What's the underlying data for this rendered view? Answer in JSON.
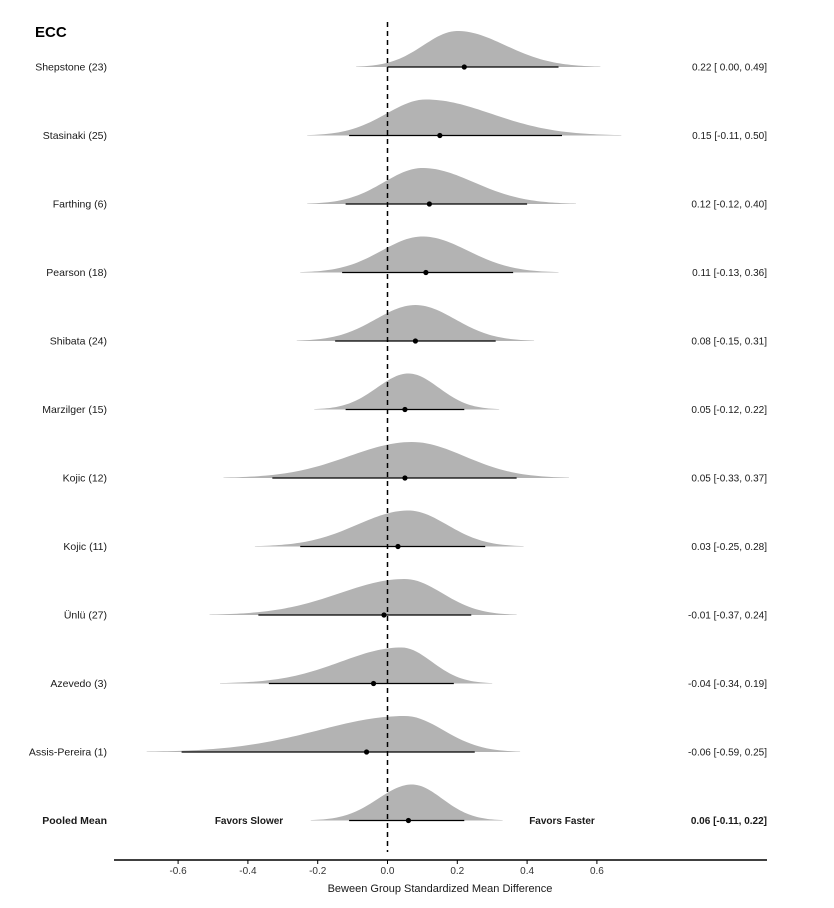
{
  "chart_data": {
    "type": "forest-density",
    "title": "ECC",
    "xlabel": "Beween Group Standardized Mean Difference",
    "xlim": [
      -0.76,
      1.08
    ],
    "xticks": [
      -0.6,
      -0.4,
      -0.2,
      0,
      0.2,
      0.4,
      0.6
    ],
    "xtick_labels": [
      "-0.6",
      "-0.4",
      "-0.2",
      "0.0",
      "0.2",
      "0.4",
      "0.6"
    ],
    "reference_line": 0,
    "favors_left": "Favors Slower",
    "favors_right": "Favors Faster",
    "fill_color": "#b3b3b3",
    "studies": [
      {
        "label": "Shepstone (23)",
        "mean": 0.22,
        "lower": 0.0,
        "upper": 0.49,
        "ci_text": "0.22 [ 0.00, 0.49]",
        "density_mode": 0.2,
        "density_min": -0.09,
        "density_max": 0.61,
        "pooled": false
      },
      {
        "label": "Stasinaki (25)",
        "mean": 0.15,
        "lower": -0.11,
        "upper": 0.5,
        "ci_text": "0.15 [-0.11, 0.50]",
        "density_mode": 0.11,
        "density_min": -0.23,
        "density_max": 0.67,
        "pooled": false
      },
      {
        "label": "Farthing (6)",
        "mean": 0.12,
        "lower": -0.12,
        "upper": 0.4,
        "ci_text": "0.12 [-0.12, 0.40]",
        "density_mode": 0.1,
        "density_min": -0.23,
        "density_max": 0.54,
        "pooled": false
      },
      {
        "label": "Pearson (18)",
        "mean": 0.11,
        "lower": -0.13,
        "upper": 0.36,
        "ci_text": "0.11 [-0.13, 0.36]",
        "density_mode": 0.1,
        "density_min": -0.25,
        "density_max": 0.49,
        "pooled": false
      },
      {
        "label": "Shibata (24)",
        "mean": 0.08,
        "lower": -0.15,
        "upper": 0.31,
        "ci_text": "0.08 [-0.15, 0.31]",
        "density_mode": 0.08,
        "density_min": -0.26,
        "density_max": 0.42,
        "pooled": false
      },
      {
        "label": "Marzilger (15)",
        "mean": 0.05,
        "lower": -0.12,
        "upper": 0.22,
        "ci_text": "0.05 [-0.12, 0.22]",
        "density_mode": 0.06,
        "density_min": -0.21,
        "density_max": 0.32,
        "pooled": false
      },
      {
        "label": "Kojic (12)",
        "mean": 0.05,
        "lower": -0.33,
        "upper": 0.37,
        "ci_text": "0.05 [-0.33, 0.37]",
        "density_mode": 0.07,
        "density_min": -0.47,
        "density_max": 0.52,
        "pooled": false
      },
      {
        "label": "Kojic (11)",
        "mean": 0.03,
        "lower": -0.25,
        "upper": 0.28,
        "ci_text": "0.03 [-0.25, 0.28]",
        "density_mode": 0.06,
        "density_min": -0.38,
        "density_max": 0.39,
        "pooled": false
      },
      {
        "label": "Ünlü (27)",
        "mean": -0.01,
        "lower": -0.37,
        "upper": 0.24,
        "ci_text": "-0.01 [-0.37, 0.24]",
        "density_mode": 0.05,
        "density_min": -0.51,
        "density_max": 0.37,
        "pooled": false
      },
      {
        "label": "Azevedo (3)",
        "mean": -0.04,
        "lower": -0.34,
        "upper": 0.19,
        "ci_text": "-0.04 [-0.34, 0.19]",
        "density_mode": 0.04,
        "density_min": -0.48,
        "density_max": 0.3,
        "pooled": false
      },
      {
        "label": "Assis-Pereira  (1)",
        "mean": -0.06,
        "lower": -0.59,
        "upper": 0.25,
        "ci_text": "-0.06 [-0.59, 0.25]",
        "density_mode": 0.05,
        "density_min": -0.69,
        "density_max": 0.38,
        "pooled": false
      },
      {
        "label": "Pooled Mean",
        "mean": 0.06,
        "lower": -0.11,
        "upper": 0.22,
        "ci_text": "0.06 [-0.11, 0.22]",
        "density_mode": 0.07,
        "density_min": -0.22,
        "density_max": 0.33,
        "pooled": true
      }
    ]
  }
}
